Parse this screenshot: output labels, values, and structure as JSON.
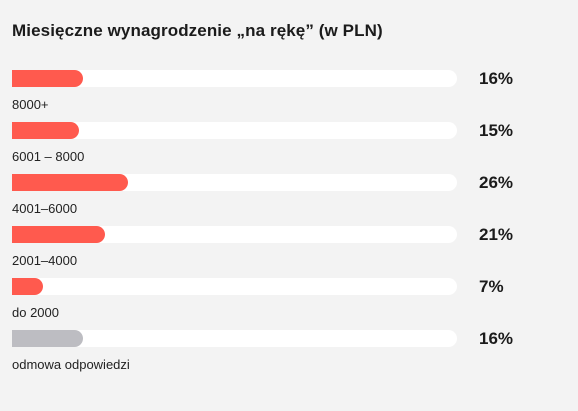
{
  "chart_data": {
    "type": "bar",
    "title": "Miesięczne wynagrodzenie „na rękę” (w PLN)",
    "categories": [
      "8000+",
      "6001 – 8000",
      "4001–6000",
      "2001–4000",
      "do 2000",
      "odmowa odpowiedzi"
    ],
    "values": [
      16,
      15,
      26,
      21,
      7,
      16
    ],
    "value_labels": [
      "16%",
      "15%",
      "26%",
      "21%",
      "7%",
      "16%"
    ],
    "unit": "%",
    "xlim": [
      0,
      100
    ],
    "orientation": "horizontal",
    "grid": false,
    "legend": "none",
    "colors": [
      "#ff5a4e",
      "#ff5a4e",
      "#ff5a4e",
      "#ff5a4e",
      "#ff5a4e",
      "#bdbdc2"
    ]
  }
}
